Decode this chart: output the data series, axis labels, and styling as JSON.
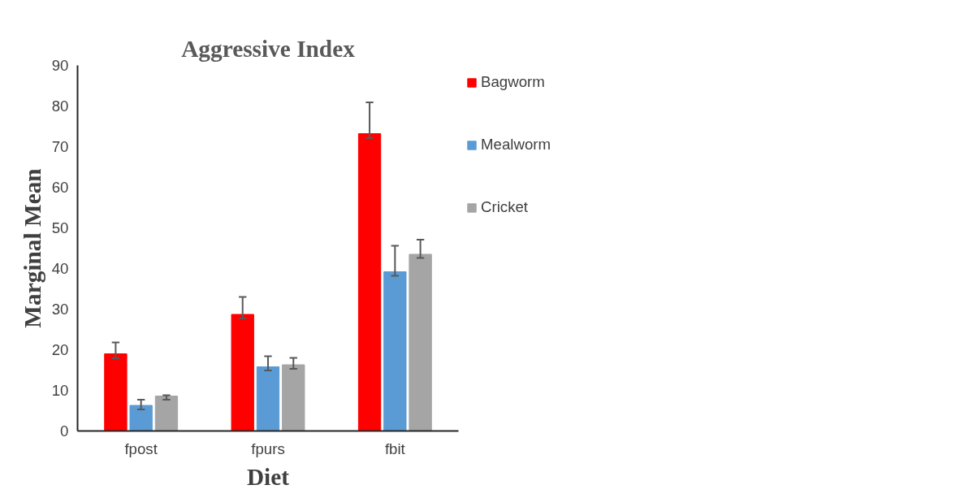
{
  "chart_data": {
    "type": "bar",
    "title": "Aggressive Index",
    "xlabel": "Diet",
    "ylabel": "Marginal Mean",
    "categories": [
      "fpost",
      "fpurs",
      "fbit"
    ],
    "series": [
      {
        "name": "Bagworm",
        "color": "#ff0000",
        "values": [
          19,
          28.7,
          73.2
        ],
        "errors": [
          [
            17.9,
            21.8
          ],
          [
            27.7,
            33.0
          ],
          [
            72.1,
            80.9
          ]
        ]
      },
      {
        "name": "Mealworm",
        "color": "#5b9bd5",
        "values": [
          6.3,
          15.8,
          39.2
        ],
        "errors": [
          [
            5.3,
            7.7
          ],
          [
            14.9,
            18.4
          ],
          [
            38.2,
            45.6
          ]
        ]
      },
      {
        "name": "Cricket",
        "color": "#a5a5a5",
        "values": [
          8.6,
          16.3,
          43.5
        ],
        "errors": [
          [
            7.7,
            8.8
          ],
          [
            15.3,
            18.0
          ],
          [
            42.6,
            47.1
          ]
        ]
      }
    ],
    "ylim": [
      0,
      90
    ],
    "yticks": [
      0,
      10,
      20,
      30,
      40,
      50,
      60,
      70,
      80,
      90
    ],
    "grid": false,
    "legend": "top right"
  }
}
